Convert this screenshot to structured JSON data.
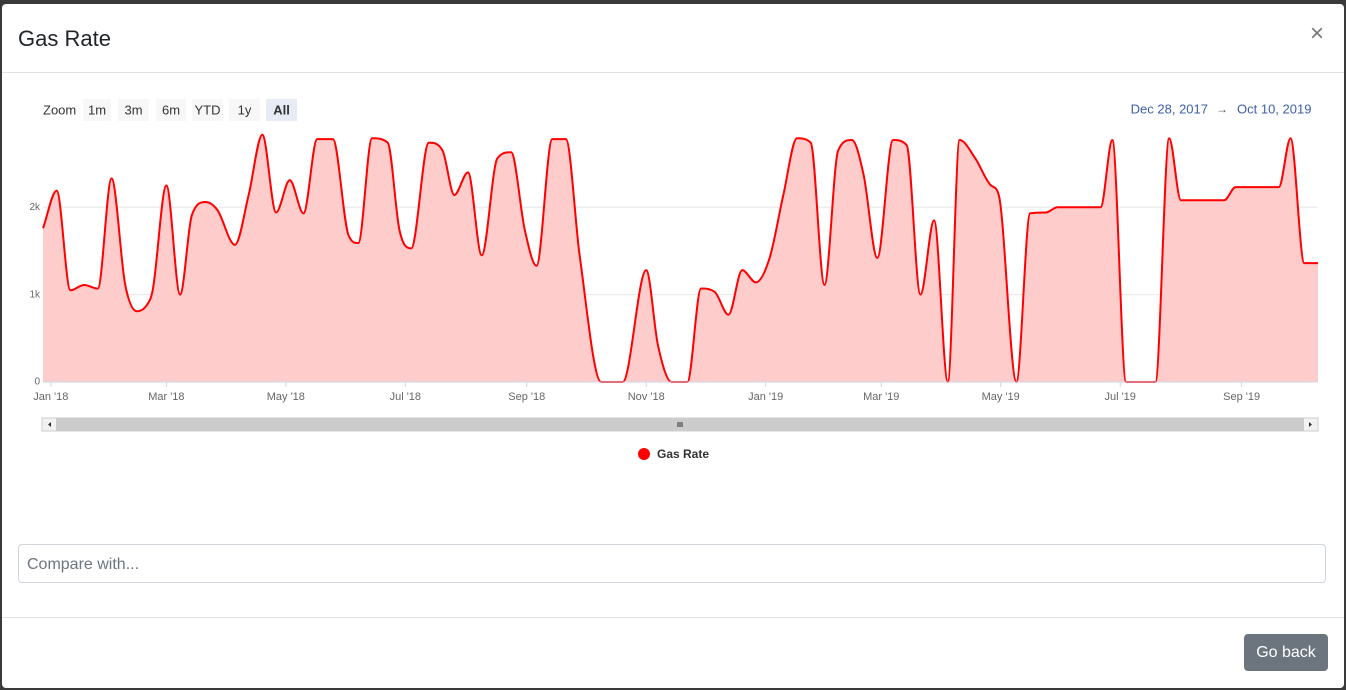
{
  "header": {
    "title": "Gas Rate",
    "close": "×"
  },
  "range_selector": {
    "label": "Zoom",
    "buttons": [
      "1m",
      "3m",
      "6m",
      "YTD",
      "1y",
      "All"
    ],
    "from": "Dec 28, 2017",
    "arrow": "→",
    "to": "Oct 10, 2019"
  },
  "chart_data": {
    "type": "area",
    "x": [
      "2017-12-28",
      "2018-01-04",
      "2018-01-11",
      "2018-01-18",
      "2018-01-25",
      "2018-02-01",
      "2018-02-08",
      "2018-02-14",
      "2018-02-19",
      "2018-02-22",
      "2018-03-01",
      "2018-03-08",
      "2018-03-14",
      "2018-03-21",
      "2018-03-27",
      "2018-04-05",
      "2018-04-12",
      "2018-04-19",
      "2018-04-26",
      "2018-05-03",
      "2018-05-10",
      "2018-05-17",
      "2018-05-25",
      "2018-06-02",
      "2018-06-07",
      "2018-06-14",
      "2018-06-22",
      "2018-06-28",
      "2018-07-04",
      "2018-07-13",
      "2018-07-20",
      "2018-07-26",
      "2018-08-02",
      "2018-08-09",
      "2018-08-17",
      "2018-08-24",
      "2018-08-31",
      "2018-09-06",
      "2018-09-14",
      "2018-09-21",
      "2018-09-28",
      "2018-10-09",
      "2018-10-20",
      "2018-11-01",
      "2018-11-07",
      "2018-11-14",
      "2018-11-22",
      "2018-11-29",
      "2018-12-06",
      "2018-12-13",
      "2018-12-20",
      "2018-12-27",
      "2019-01-03",
      "2019-01-10",
      "2019-01-17",
      "2019-01-24",
      "2019-01-31",
      "2019-02-07",
      "2019-02-14",
      "2019-02-20",
      "2019-02-27",
      "2019-03-07",
      "2019-03-14",
      "2019-03-21",
      "2019-03-28",
      "2019-04-04",
      "2019-04-10",
      "2019-04-18",
      "2019-04-26",
      "2019-04-30",
      "2019-05-09",
      "2019-05-16",
      "2019-05-24",
      "2019-05-30",
      "2019-06-21",
      "2019-06-27",
      "2019-07-04",
      "2019-07-19",
      "2019-07-26",
      "2019-08-01",
      "2019-08-23",
      "2019-08-29",
      "2019-09-20",
      "2019-09-26",
      "2019-10-03",
      "2019-10-10"
    ],
    "series": [
      {
        "name": "Gas Rate",
        "color": "#ff0000",
        "fill": "#ffcccc",
        "values": [
          1760,
          2190,
          1050,
          1110,
          1070,
          2330,
          1110,
          810,
          880,
          1050,
          2250,
          1000,
          1910,
          2060,
          1970,
          1570,
          2140,
          2830,
          1940,
          2310,
          1930,
          2780,
          2780,
          1680,
          1590,
          2790,
          2740,
          1740,
          1530,
          2740,
          2650,
          2140,
          2400,
          1450,
          2560,
          2630,
          1740,
          1330,
          2780,
          2780,
          1450,
          0,
          0,
          1280,
          420,
          0,
          0,
          1070,
          1030,
          770,
          1280,
          1140,
          1420,
          2140,
          2790,
          2740,
          1110,
          2650,
          2770,
          2370,
          1420,
          2770,
          2710,
          1000,
          1850,
          0,
          2770,
          2560,
          2250,
          2140,
          0,
          1930,
          1940,
          2000,
          2000,
          2770,
          0,
          0,
          2790,
          2080,
          2080,
          2230,
          2230,
          2790,
          1360,
          1360
        ]
      }
    ],
    "xlim": [
      "2017-12-28",
      "2019-10-10"
    ],
    "xticks": [
      {
        "value": "2018-01-01",
        "label": "Jan '18"
      },
      {
        "value": "2018-03-01",
        "label": "Mar '18"
      },
      {
        "value": "2018-05-01",
        "label": "May '18"
      },
      {
        "value": "2018-07-01",
        "label": "Jul '18"
      },
      {
        "value": "2018-09-01",
        "label": "Sep '18"
      },
      {
        "value": "2018-11-01",
        "label": "Nov '18"
      },
      {
        "value": "2019-01-01",
        "label": "Jan '19"
      },
      {
        "value": "2019-03-01",
        "label": "Mar '19"
      },
      {
        "value": "2019-05-01",
        "label": "May '19"
      },
      {
        "value": "2019-07-01",
        "label": "Jul '19"
      },
      {
        "value": "2019-09-01",
        "label": "Sep '19"
      }
    ],
    "ylim": [
      0,
      2850
    ],
    "yticks": [
      0,
      {
        "value": 1000,
        "label": "1k"
      },
      {
        "value": 2000,
        "label": "2k"
      }
    ],
    "grid": true
  },
  "compare": {
    "placeholder": "Compare with..."
  },
  "footer": {
    "button": "Go back"
  }
}
